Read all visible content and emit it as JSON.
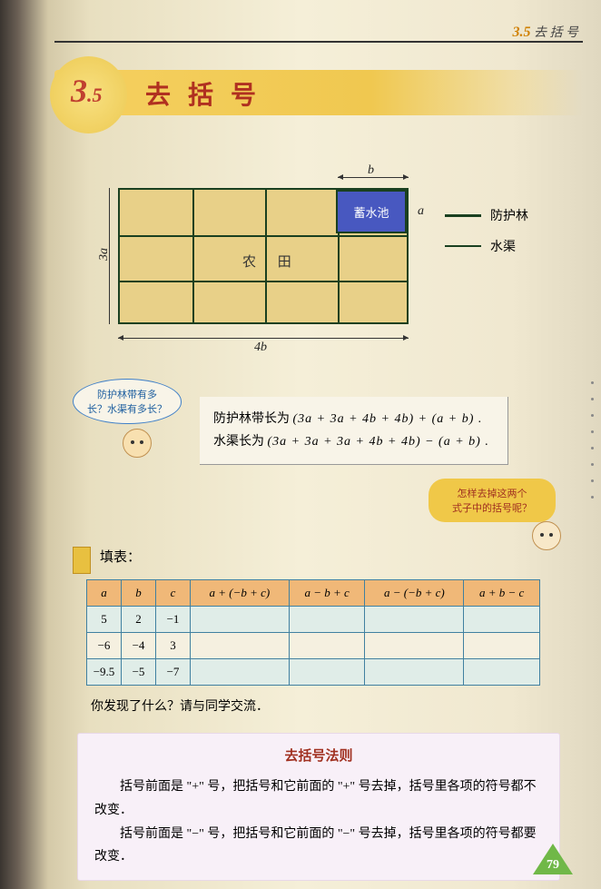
{
  "header": {
    "section_num": "3",
    "section_sub": ".5",
    "section_title": "去 括 号"
  },
  "title": {
    "num": "3",
    "sub": ".5",
    "text": "去 括 号"
  },
  "diagram": {
    "pond_label": "蓄水池",
    "field_label": "农 田",
    "dim_top": "b",
    "dim_right": "a",
    "dim_left": "3a",
    "dim_bottom": "4b",
    "legend1": "防护林",
    "legend2": "水渠"
  },
  "bubble1": {
    "line1": "防护林带有多",
    "line2": "长？水渠有多长？"
  },
  "formulas": {
    "line1_label": "防护林带长为",
    "line1_math": "(3a + 3a + 4b + 4b) + (a + b) .",
    "line2_label": "水渠长为",
    "line2_math": "(3a + 3a + 3a + 4b + 4b) − (a + b) ."
  },
  "bubble2": {
    "line1": "怎样去掉这两个",
    "line2": "式子中的括号呢？"
  },
  "section_fill": "填表：",
  "table": {
    "headers": [
      "a",
      "b",
      "c",
      "a + (−b + c)",
      "a − b + c",
      "a − (−b + c)",
      "a + b − c"
    ],
    "rows": [
      [
        "5",
        "2",
        "−1",
        "",
        "",
        "",
        ""
      ],
      [
        "−6",
        "−4",
        "3",
        "",
        "",
        "",
        ""
      ],
      [
        "−9.5",
        "−5",
        "−7",
        "",
        "",
        "",
        ""
      ]
    ]
  },
  "discover": "你发现了什么？请与同学交流．",
  "rule": {
    "title": "去括号法则",
    "p1": "括号前面是 \"+\" 号，把括号和它前面的 \"+\" 号去掉，括号里各项的符号都不改变．",
    "p2": "括号前面是 \"−\" 号，把括号和它前面的 \"−\" 号去掉，括号里各项的符号都要改变．"
  },
  "page_number": "79"
}
